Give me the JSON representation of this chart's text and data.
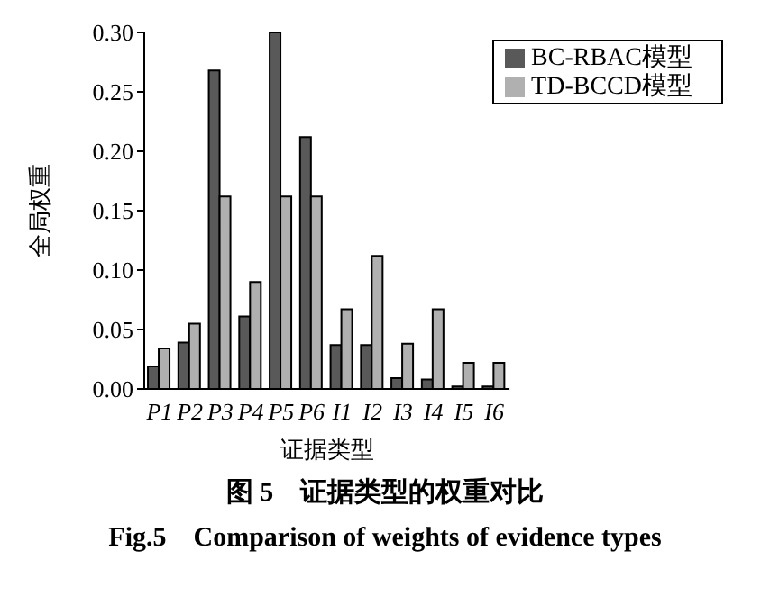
{
  "chart_data": {
    "type": "bar",
    "title": "图 5　证据类型的权重对比",
    "subtitle": "Fig.5　Comparison of weights of evidence types",
    "xlabel": "证据类型",
    "ylabel": "全局权重",
    "categories": [
      "P1",
      "P2",
      "P3",
      "P4",
      "P5",
      "P6",
      "I1",
      "I2",
      "I3",
      "I4",
      "I5",
      "I6"
    ],
    "series": [
      {
        "name": "BC-RBAC模型",
        "color": "#595959",
        "values": [
          0.019,
          0.039,
          0.268,
          0.061,
          0.3,
          0.212,
          0.037,
          0.037,
          0.009,
          0.008,
          0.002,
          0.002
        ]
      },
      {
        "name": "TD-BCCD模型",
        "color": "#b0b0b0",
        "values": [
          0.034,
          0.055,
          0.162,
          0.09,
          0.162,
          0.162,
          0.067,
          0.112,
          0.038,
          0.067,
          0.022,
          0.022
        ]
      }
    ],
    "ylim": [
      0,
      0.3
    ],
    "yticks": [
      {
        "value": 0,
        "label": "0.00"
      },
      {
        "value": 0.05,
        "label": "0.05"
      },
      {
        "value": 0.1,
        "label": "0.10"
      },
      {
        "value": 0.15,
        "label": "0.15"
      },
      {
        "value": 0.2,
        "label": "0.20"
      },
      {
        "value": 0.25,
        "label": "0.25"
      },
      {
        "value": 0.3,
        "label": "0.30"
      }
    ],
    "grid": false,
    "legend": "top right"
  }
}
